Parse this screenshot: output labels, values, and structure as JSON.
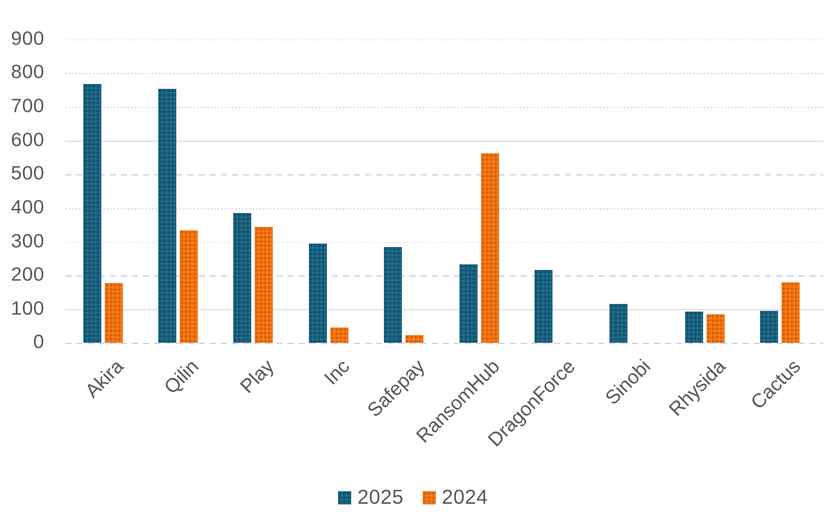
{
  "chart_data": {
    "type": "bar",
    "title": "",
    "categories": [
      "Akira",
      "Qilin",
      "Play",
      "Inc",
      "Safepay",
      "RansomHub",
      "DragonForce",
      "Sinobi",
      "Rhysida",
      "Cactus"
    ],
    "series": [
      {
        "name": "2025",
        "color": "#16607F",
        "values": [
          768,
          753,
          386,
          294,
          284,
          234,
          216,
          117,
          94,
          95
        ]
      },
      {
        "name": "2024",
        "color": "#F4710D",
        "values": [
          178,
          334,
          345,
          47,
          23,
          562,
          0,
          0,
          86,
          180
        ]
      }
    ],
    "xlabel": "",
    "ylabel": "",
    "ylim": [
      0,
      900
    ],
    "yticks": [
      0,
      100,
      200,
      300,
      400,
      500,
      600,
      700,
      800,
      900
    ],
    "grid": true,
    "legend_position": "bottom",
    "colors": {
      "series_2025": "#16607F",
      "series_2024": "#F4710D",
      "gridline": "#d9d8ef",
      "axis_text": "#575757",
      "background": "#ffffff"
    }
  }
}
